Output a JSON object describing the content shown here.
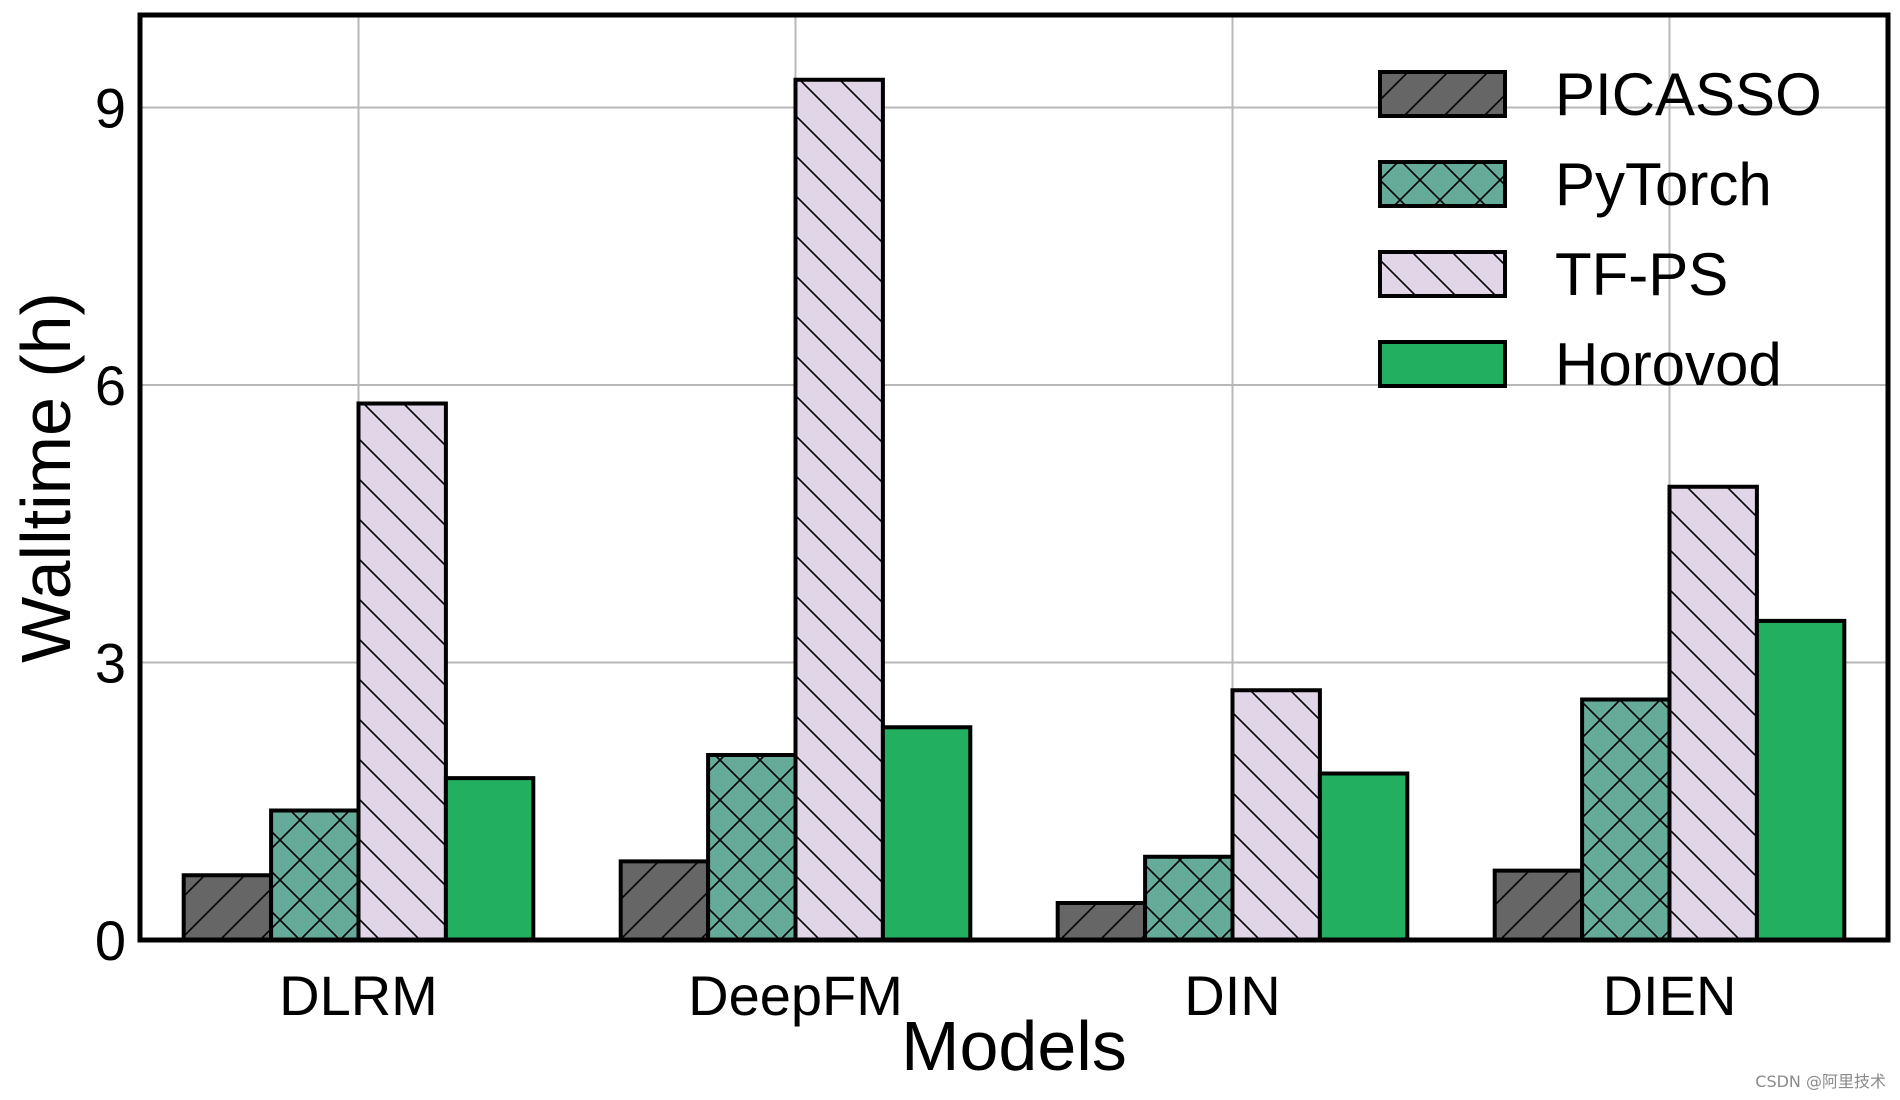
{
  "chart_data": {
    "type": "bar",
    "xlabel": "Models",
    "ylabel": "Walltime (h)",
    "categories": [
      "DLRM",
      "DeepFM",
      "DIN",
      "DIEN"
    ],
    "ylim": [
      0,
      10
    ],
    "yticks": [
      0,
      3,
      6,
      9
    ],
    "grid": true,
    "legend_position": "top-right",
    "series": [
      {
        "name": "PICASSO",
        "values": [
          0.7,
          0.85,
          0.4,
          0.75
        ],
        "color": "#666666",
        "hatch": "forward-diagonal"
      },
      {
        "name": "PyTorch",
        "values": [
          1.4,
          2.0,
          0.9,
          2.6
        ],
        "color": "#66aa99",
        "hatch": "crosshatch"
      },
      {
        "name": "TF-PS",
        "values": [
          5.8,
          9.3,
          2.7,
          4.9
        ],
        "color": "#e0d6e8",
        "hatch": "back-diagonal"
      },
      {
        "name": "Horovod",
        "values": [
          1.75,
          2.3,
          1.8,
          3.45
        ],
        "color": "#22b060",
        "hatch": "none"
      }
    ]
  },
  "watermark": "CSDN @阿里技术"
}
